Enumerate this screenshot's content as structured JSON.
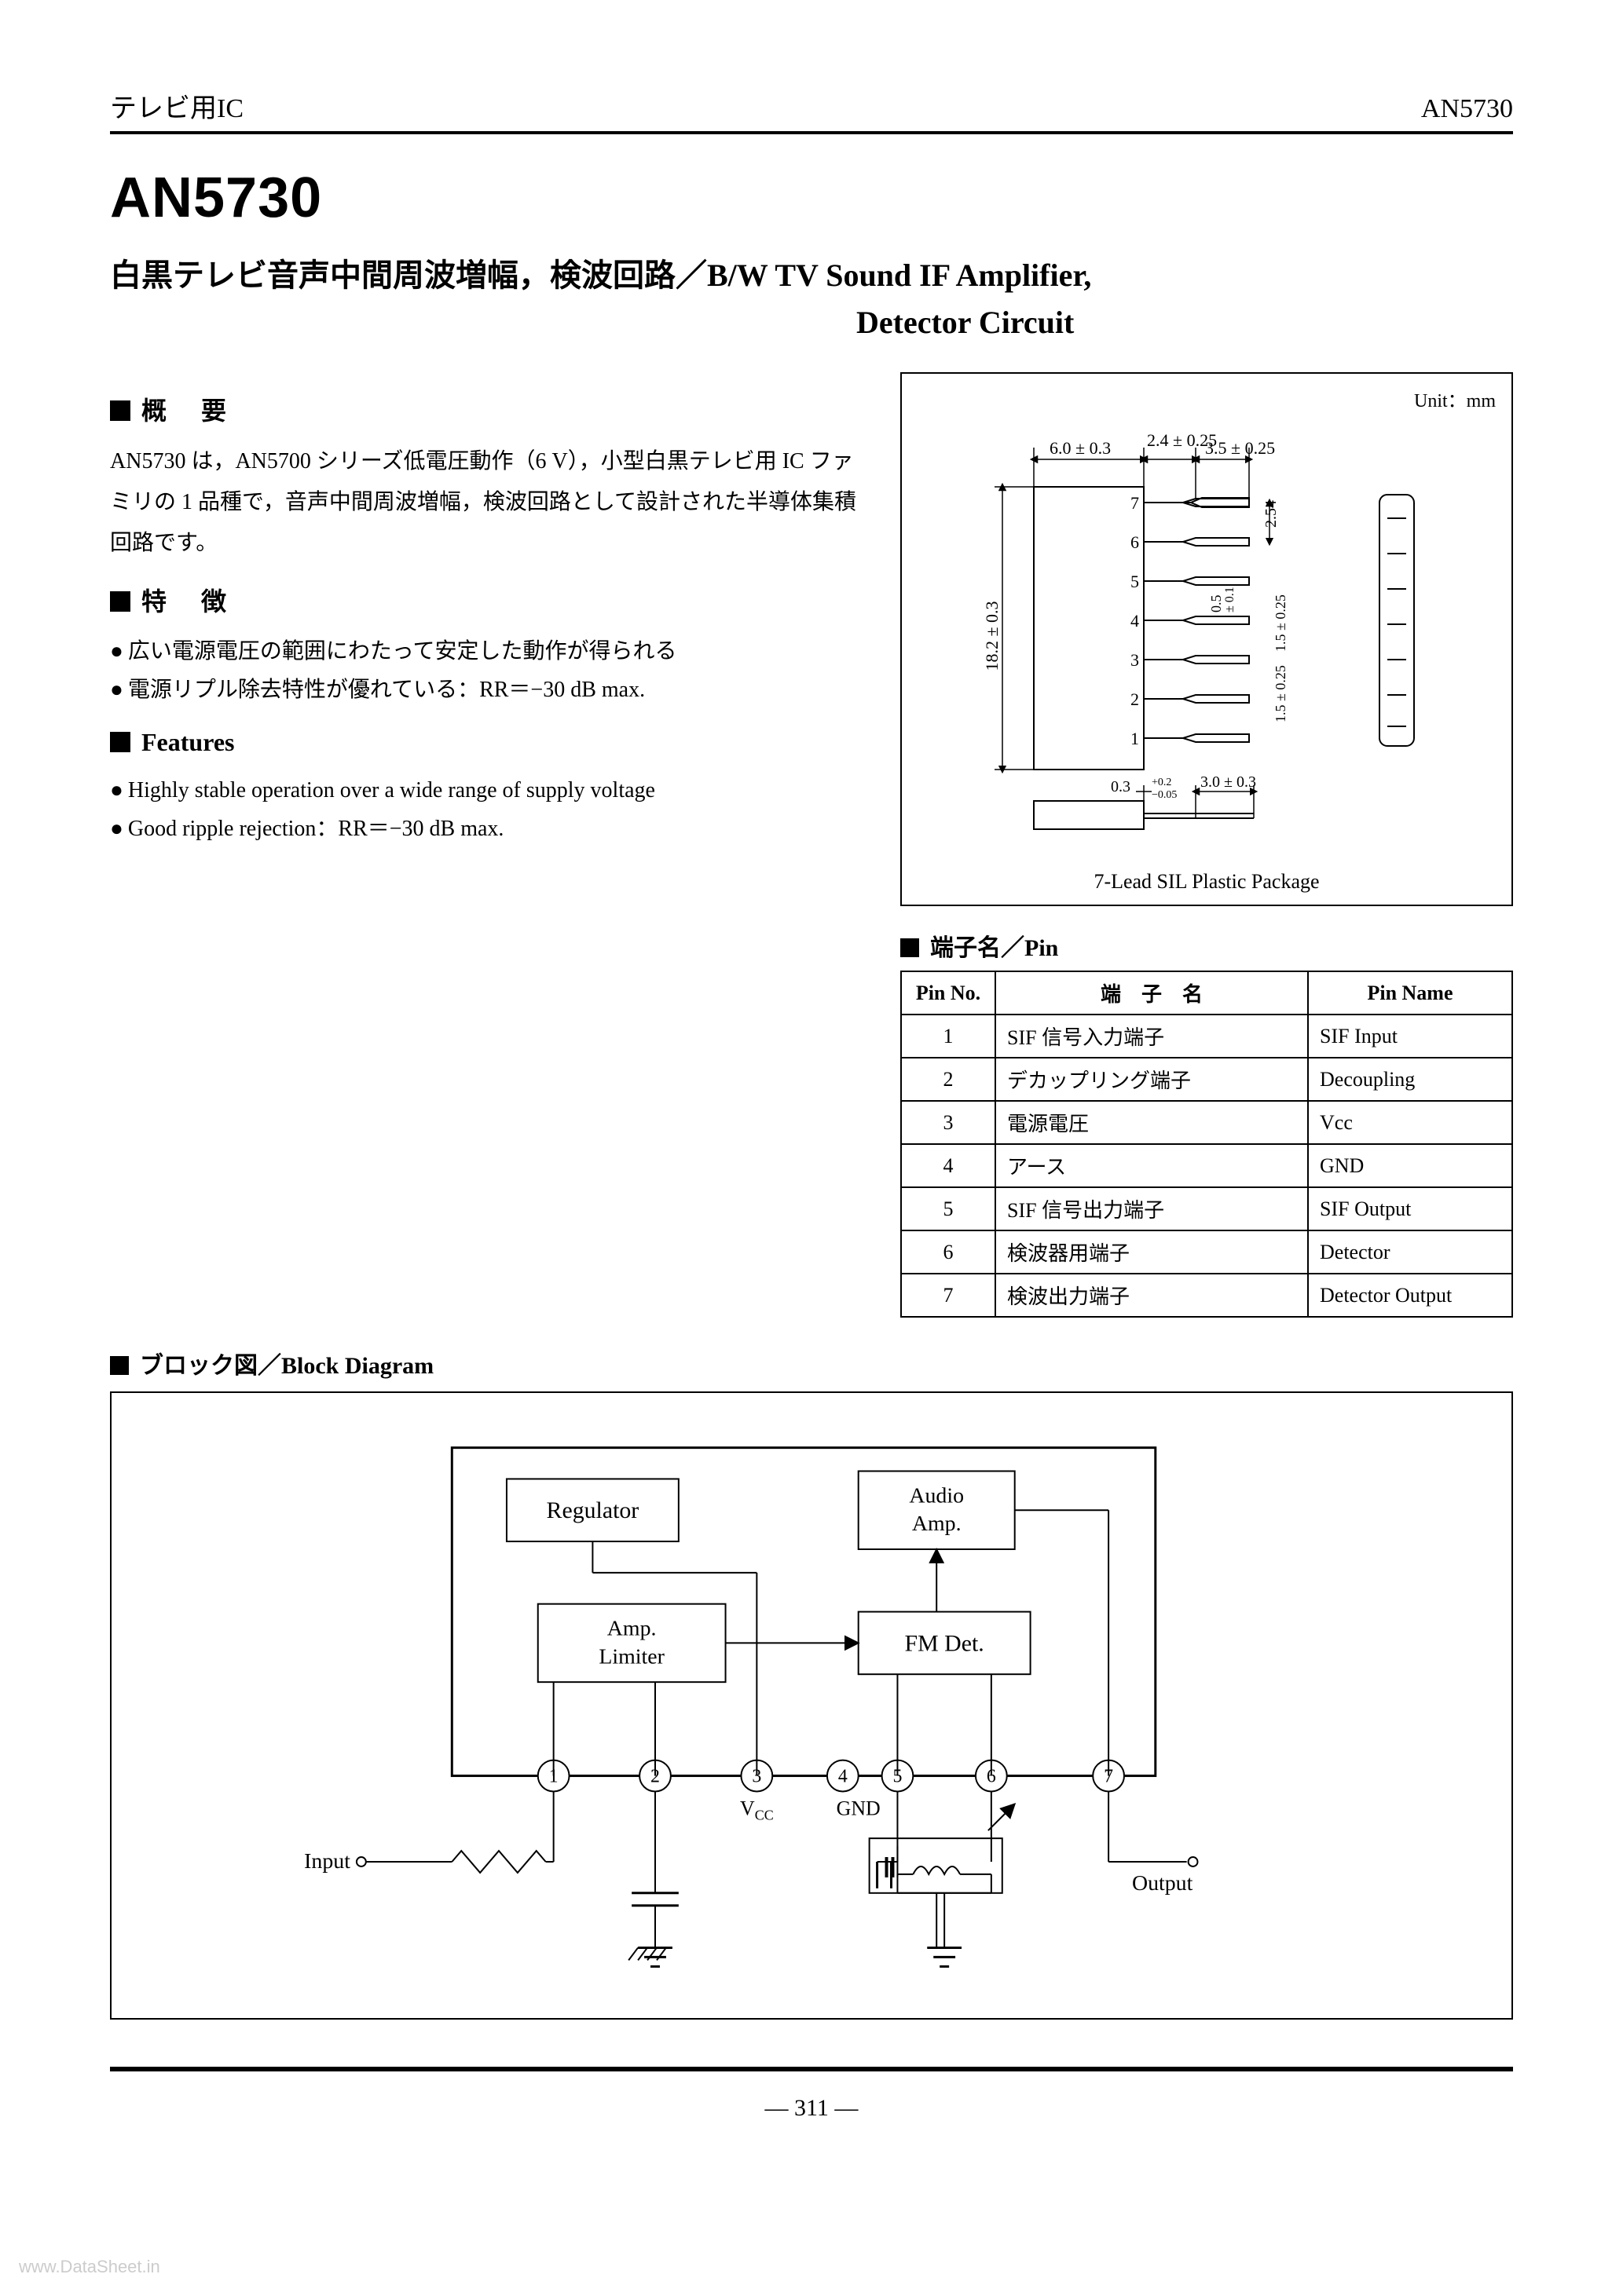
{
  "header": {
    "category_jp": "テレビ用IC",
    "partno": "AN5730"
  },
  "title": {
    "partno": "AN5730",
    "line1_jp": "白黒テレビ音声中間周波増幅，検波回路／",
    "line1_en": "B/W TV Sound IF Amplifier,",
    "line2_en": "Detector Circuit"
  },
  "sec_overview": {
    "heading": "概　要",
    "body": "AN5730 は，AN5700 シリーズ低電圧動作（6 V），小型白黒テレビ用 IC ファミリの 1 品種で，音声中間周波増幅，検波回路として設計された半導体集積回路です。"
  },
  "sec_features_jp": {
    "heading": "特　徴",
    "items": [
      "広い電源電圧の範囲にわたって安定した動作が得られる",
      "電源リプル除去特性が優れている：RR＝−30 dB max."
    ]
  },
  "sec_features_en": {
    "heading": "Features",
    "items": [
      "Highly stable operation over a wide range of supply voltage",
      "Good ripple rejection：RR＝−30 dB max."
    ]
  },
  "package": {
    "unit_label": "Unit：mm",
    "caption": "7-Lead SIL Plastic Package",
    "dims": {
      "body_w": "6.0 ± 0.3",
      "lead_len1": "2.4 ± 0.25",
      "lead_len2": "3.5 ± 0.25",
      "body_h": "18.2 ± 0.3",
      "pitch": "2.54",
      "lead_t1": "0.5",
      "lead_t1_tol": "± 0.1",
      "lead_t2": "1.5 ± 0.25",
      "lead_t3": "1.5 ± 0.25",
      "thick": "0.3",
      "thick_tol_p": "+0.2",
      "thick_tol_m": "−0.05",
      "standoff": "3.0 ± 0.3"
    },
    "pin_count": 7
  },
  "pin_table": {
    "heading": "端子名／Pin",
    "cols": [
      "Pin No.",
      "端　子　名",
      "Pin Name"
    ],
    "rows": [
      [
        "1",
        "SIF 信号入力端子",
        "SIF Input"
      ],
      [
        "2",
        "デカップリング端子",
        "Decoupling"
      ],
      [
        "3",
        "電源電圧",
        "Vcc"
      ],
      [
        "4",
        "アース",
        "GND"
      ],
      [
        "5",
        "SIF 信号出力端子",
        "SIF Output"
      ],
      [
        "6",
        "検波器用端子",
        "Detector"
      ],
      [
        "7",
        "検波出力端子",
        "Detector Output"
      ]
    ]
  },
  "block_diagram": {
    "heading": "ブロック図／Block Diagram",
    "blocks": {
      "regulator": "Regulator",
      "audio_amp": "Audio\nAmp.",
      "amp_limiter": "Amp.\nLimiter",
      "fm_det": "FM Det."
    },
    "pins": [
      "1",
      "2",
      "3",
      "4",
      "5",
      "6",
      "7"
    ],
    "pin_labels": {
      "3": "Vcc",
      "4": "GND"
    },
    "io": {
      "input": "Input",
      "output": "Output"
    }
  },
  "footer": {
    "page": "— 311 —",
    "watermark": "www.DataSheet.in"
  },
  "style": {
    "text_color": "#000000",
    "bg_color": "#ffffff",
    "rule_color": "#000000"
  }
}
